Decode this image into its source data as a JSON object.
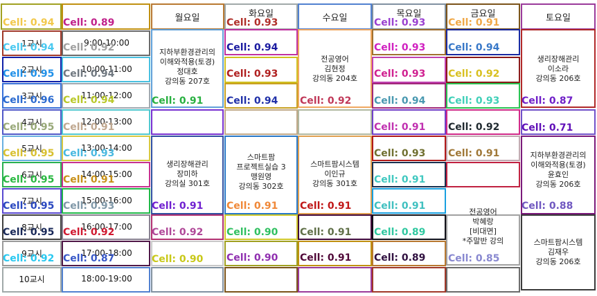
{
  "days": [
    "월요일",
    "화요일",
    "수요일",
    "목요일",
    "금요일",
    "토요일"
  ],
  "periods": [
    {
      "label": "1교시",
      "time": "9:00-10:00"
    },
    {
      "label": "2교시",
      "time": "10:00-11:00"
    },
    {
      "label": "3교시",
      "time": "11:00-12:00"
    },
    {
      "label": "4교시",
      "time": "12:00-13:00"
    },
    {
      "label": "5교시",
      "time": "13:00-14:00"
    },
    {
      "label": "6교시",
      "time": "14:00-15:00"
    },
    {
      "label": "7교시",
      "time": "15:00-16:00"
    },
    {
      "label": "8교시",
      "time": "16:00-17:00"
    },
    {
      "label": "9교시",
      "time": "17:00-18:00"
    },
    {
      "label": "10교시",
      "time": "18:00-19:00"
    }
  ],
  "courses": [
    {
      "lines": [
        "지하부환경관리의",
        "이해와적용(토경)",
        "정대호",
        "강의동 207호"
      ]
    },
    {
      "lines": [
        "전공영어",
        "김현정",
        "강의동 204호"
      ]
    },
    {
      "lines": [
        "생리장해관리",
        "이소라",
        "강의동 206호"
      ]
    },
    {
      "lines": [
        "생리장해관리",
        "장미하",
        "강의실 301호"
      ]
    },
    {
      "lines": [
        "스마트팜",
        "프로젝트실습 3",
        "맹원영",
        "강의동 302호"
      ]
    },
    {
      "lines": [
        "스마트팜시스템",
        "이인규",
        "강의동 301호"
      ]
    },
    {
      "lines": [
        "지하부환경관리의",
        "이해와적용(토경)",
        "윤효인",
        "강의동 206호"
      ]
    },
    {
      "lines": [
        "전공영어",
        "박혜랑",
        "[비대면]",
        "*주말반 강의"
      ]
    },
    {
      "lines": [
        "스마트팜시스템",
        "김재우",
        "강의동 206호"
      ]
    }
  ],
  "cell_labels": [
    {
      "text": "Cell: 0.94",
      "color": "#f2c84b"
    },
    {
      "text": "Cell: 0.89",
      "color": "#c0208a"
    },
    {
      "text": "Cell: 0.93",
      "color": "#b0302a"
    },
    {
      "text": "Cell: 0.93",
      "color": "#9a40d0"
    },
    {
      "text": "Cell: 0.91",
      "color": "#f0a848"
    },
    {
      "text": "Cell: 0.94",
      "color": "#48c8f0"
    },
    {
      "text": "Cell: 0.92",
      "color": "#a0a0a0"
    },
    {
      "text": "Cell: 0.94",
      "color": "#1a1aa0"
    },
    {
      "text": "Cell: 0.93",
      "color": "#d020c0"
    },
    {
      "text": "Cell: 0.94",
      "color": "#3878c8"
    },
    {
      "text": "Cell: 0.95",
      "color": "#2090e8"
    },
    {
      "text": "Cell: 0.94",
      "color": "#707880"
    },
    {
      "text": "Cell: 0.93",
      "color": "#b02020"
    },
    {
      "text": "Cell: 0.93",
      "color": "#d02090"
    },
    {
      "text": "Cell: 0.92",
      "color": "#d8c020"
    },
    {
      "text": "Cell: 0.96",
      "color": "#2a6ad0"
    },
    {
      "text": "Cell: 0.94",
      "color": "#b8c828"
    },
    {
      "text": "Cell: 0.91",
      "color": "#28b040"
    },
    {
      "text": "Cell: 0.94",
      "color": "#2030a8"
    },
    {
      "text": "Cell: 0.92",
      "color": "#c03858"
    },
    {
      "text": "Cell: 0.94",
      "color": "#4898b0"
    },
    {
      "text": "Cell: 0.93",
      "color": "#40d0b8"
    },
    {
      "text": "Cell: 0.87",
      "color": "#7020c8"
    },
    {
      "text": "Cell: 0.95",
      "color": "#98a878"
    },
    {
      "text": "Cell: 0.91",
      "color": "#c0a890"
    },
    {
      "text": "Cell: 0.91",
      "color": "#c030b0"
    },
    {
      "text": "Cell: 0.92",
      "color": "#202a30"
    },
    {
      "text": "Cell: 0.71",
      "color": "#6010b8"
    },
    {
      "text": "Cell: 0.95",
      "color": "#d8c030"
    },
    {
      "text": "Cell: 0.93",
      "color": "#48b8e0"
    },
    {
      "text": "Cell: 0.93",
      "color": "#707030"
    },
    {
      "text": "Cell: 0.91",
      "color": "#a07838"
    },
    {
      "text": "Cell: 0.95",
      "color": "#28b840"
    },
    {
      "text": "Cell: 0.91",
      "color": "#c89018"
    },
    {
      "text": "Cell: 0.91",
      "color": "#40c8c0"
    },
    {
      "text": "Cell: 0.95",
      "color": "#2a48c0"
    },
    {
      "text": "Cell: 0.93",
      "color": "#8098a8"
    },
    {
      "text": "Cell: 0.91",
      "color": "#7020d0"
    },
    {
      "text": "Cell: 0.91",
      "color": "#f08838"
    },
    {
      "text": "Cell: 0.91",
      "color": "#c01818"
    },
    {
      "text": "Cell: 0.91",
      "color": "#40c0c0"
    },
    {
      "text": "Cell: 0.88",
      "color": "#7058c0"
    },
    {
      "text": "Cell: 0.95",
      "color": "#182858"
    },
    {
      "text": "Cell: 0.92",
      "color": "#d01830"
    },
    {
      "text": "Cell: 0.92",
      "color": "#b04898"
    },
    {
      "text": "Cell: 0.90",
      "color": "#30c060"
    },
    {
      "text": "Cell: 0.91",
      "color": "#607048"
    },
    {
      "text": "Cell: 0.89",
      "color": "#30c8a0"
    },
    {
      "text": "Cell: 0.92",
      "color": "#28c8f0"
    },
    {
      "text": "Cell: 0.87",
      "color": "#3858c8"
    },
    {
      "text": "Cell: 0.90",
      "color": "#c8c818"
    },
    {
      "text": "Cell: 0.90",
      "color": "#9030b0"
    },
    {
      "text": "Cell: 0.91",
      "color": "#500838"
    },
    {
      "text": "Cell: 0.89",
      "color": "#301040"
    },
    {
      "text": "Cell: 0.85",
      "color": "#8888d0"
    }
  ],
  "box_colors": [
    "#a0a020",
    "#c09010",
    "#b87830",
    "#a0a8a8",
    "#5080d0",
    "#8090a0",
    "#7a5218",
    "#9a3a9a",
    "#a03828",
    "#6a6a6a",
    "#60a0d8",
    "#c030a0",
    "#f0a860",
    "#a07030",
    "#1828a0",
    "#b02828",
    "#1020a8",
    "#48c0e0",
    "#d0c020",
    "#c040b0",
    "#8a1818",
    "#3870d8",
    "#a0a8b0",
    "#c8a020",
    "#a02878",
    "#28c050",
    "#5058c8",
    "#50c8d0",
    "#7830d0",
    "#c0a888",
    "#b0b8a0",
    "#7040c8",
    "#d02888",
    "#7050c8",
    "#68b0e0",
    "#d8c840",
    "#3050a0",
    "#2878c8",
    "#e0a050",
    "#b01818",
    "#c0a8b0",
    "#7a1a7a",
    "#28b050",
    "#c83090",
    "#183050",
    "#c02040",
    "#5848d0",
    "#20b848",
    "#18a0e0",
    "#404040",
    "#888090",
    "#b03070",
    "#d0c828",
    "#400838",
    "#101018",
    "#a0a0a0",
    "#3a3a3a",
    "#9a9a9a",
    "#501848",
    "#c8c8c8"
  ]
}
